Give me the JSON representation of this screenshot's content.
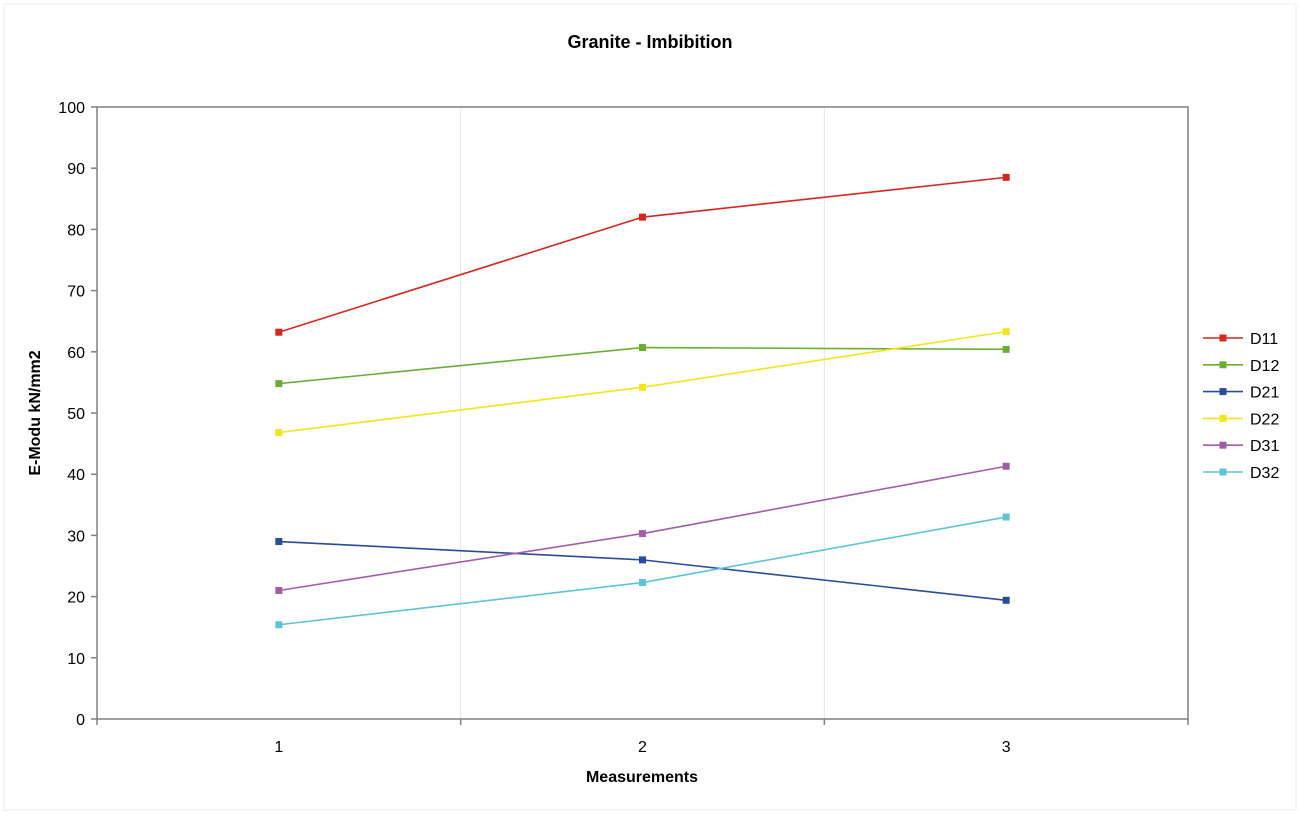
{
  "chart_data": {
    "type": "line",
    "title": "Granite - Imbibition",
    "xlabel": "Measurements",
    "ylabel": "E-Modu kN/mm2",
    "categories": [
      "1",
      "2",
      "3"
    ],
    "ylim": [
      0,
      100
    ],
    "yticks": [
      "0",
      "10",
      "20",
      "30",
      "40",
      "50",
      "60",
      "70",
      "80",
      "90",
      "100"
    ],
    "grid": "vertical",
    "legend_position": "right",
    "marker": "square",
    "series": [
      {
        "name": "D11",
        "color": "#d7261e",
        "values": [
          63.2,
          82.0,
          88.5
        ]
      },
      {
        "name": "D12",
        "color": "#6aad32",
        "values": [
          54.8,
          60.7,
          60.4
        ]
      },
      {
        "name": "D21",
        "color": "#2a4d9b",
        "values": [
          29.0,
          26.0,
          19.4
        ]
      },
      {
        "name": "D22",
        "color": "#f2e51c",
        "values": [
          46.8,
          54.2,
          63.3
        ]
      },
      {
        "name": "D31",
        "color": "#a35ca8",
        "values": [
          21.0,
          30.3,
          41.3
        ]
      },
      {
        "name": "D32",
        "color": "#5ec3d8",
        "values": [
          15.4,
          22.3,
          33.0
        ]
      }
    ]
  }
}
